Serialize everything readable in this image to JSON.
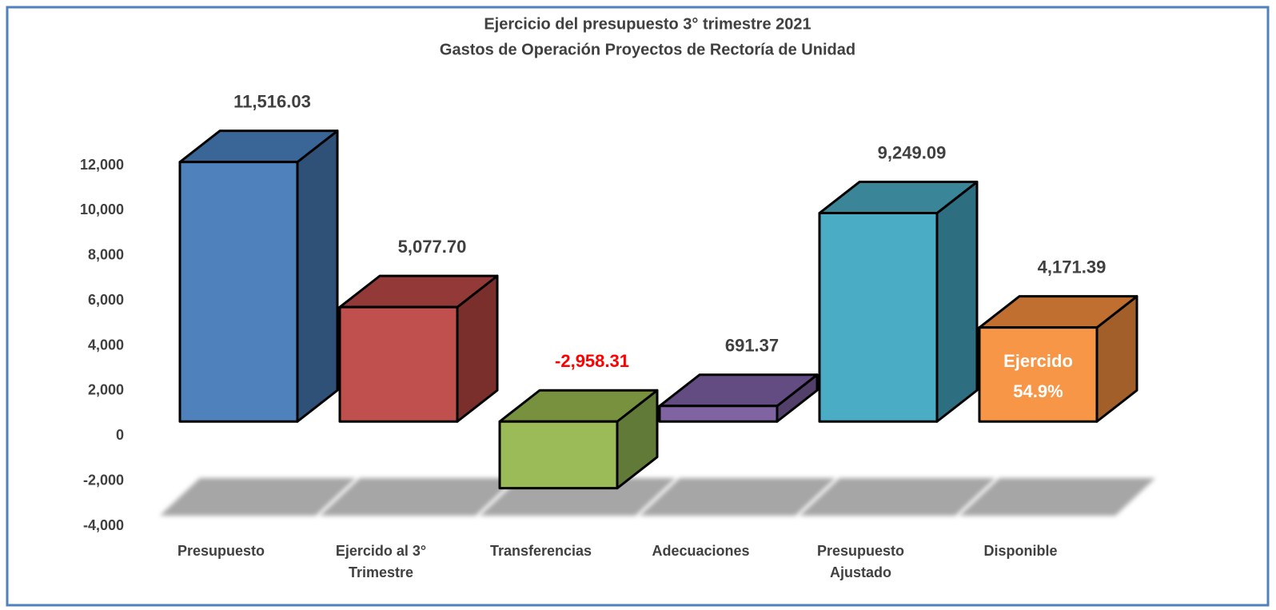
{
  "chart_data": {
    "type": "bar3d",
    "title": "Ejercicio del presupuesto 3° trimestre 2021",
    "subtitle": "Gastos de Operación Proyectos de Rectoría de Unidad",
    "categories": [
      "Presupuesto",
      "Ejercido al 3° Trimestre",
      "Transferencias",
      "Adecuaciones",
      "Presupuesto Ajustado",
      "Disponible"
    ],
    "values": [
      11516.03,
      5077.7,
      -2958.31,
      691.37,
      9249.09,
      4171.39
    ],
    "value_labels": [
      "11,516.03",
      "5,077.70",
      "-2,958.31",
      "691.37",
      "9,249.09",
      "4,171.39"
    ],
    "colors": [
      "#4f81bd",
      "#c0504d",
      "#9bbb59",
      "#8064a2",
      "#4bacc6",
      "#f79646"
    ],
    "side_colors": [
      "#2f5178",
      "#7b2f2d",
      "#627a37",
      "#523f6a",
      "#2d6e80",
      "#a35f29"
    ],
    "top_colors": [
      "#3a6597",
      "#933a38",
      "#77913f",
      "#634c82",
      "#3a8597",
      "#c06f30"
    ],
    "negative_label_color": "#ff0000",
    "annotation": [
      "Ejercido",
      "54.9%"
    ],
    "ylim": [
      -4000,
      12000
    ],
    "yticks": [
      {
        "value": -4000,
        "label": "-4,000"
      },
      {
        "value": -2000,
        "label": "-2,000"
      },
      0,
      {
        "value": 2000,
        "label": "2,000"
      },
      {
        "value": 4000,
        "label": "4,000"
      },
      {
        "value": 6000,
        "label": "6,000"
      },
      {
        "value": 8000,
        "label": "8,000"
      },
      {
        "value": 10000,
        "label": "10,000"
      },
      {
        "value": 12000,
        "label": "12,000"
      }
    ],
    "grid": false
  }
}
